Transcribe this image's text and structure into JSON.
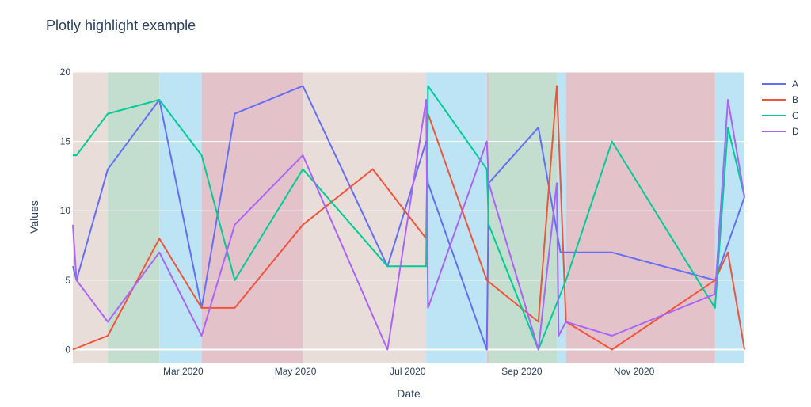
{
  "chart_data": {
    "type": "line",
    "title": "Plotly highlight example",
    "xlabel": "Date",
    "ylabel": "Values",
    "xlim": [
      "2020-01-01",
      "2020-12-31"
    ],
    "ylim": [
      -1,
      20
    ],
    "grid": true,
    "legend_position": "top-right",
    "x_ticks": [
      {
        "date": "2020-03-01",
        "label": "Mar 2020"
      },
      {
        "date": "2020-05-01",
        "label": "May 2020"
      },
      {
        "date": "2020-07-01",
        "label": "Jul 2020"
      },
      {
        "date": "2020-09-01",
        "label": "Sep 2020"
      },
      {
        "date": "2020-11-01",
        "label": "Nov 2020"
      }
    ],
    "y_ticks": [
      0,
      5,
      10,
      15,
      20
    ],
    "highlight_bands": [
      {
        "start": "2020-01-01",
        "end": "2020-01-20",
        "color": "#e8ddd8"
      },
      {
        "start": "2020-01-20",
        "end": "2020-02-17",
        "color": "#c3ddcf"
      },
      {
        "start": "2020-02-17",
        "end": "2020-03-11",
        "color": "#bde4f4"
      },
      {
        "start": "2020-03-11",
        "end": "2020-05-05",
        "color": "#e4c2ca"
      },
      {
        "start": "2020-05-05",
        "end": "2020-07-11",
        "color": "#e8ddd8"
      },
      {
        "start": "2020-07-11",
        "end": "2020-08-13",
        "color": "#bde4f4"
      },
      {
        "start": "2020-08-13",
        "end": "2020-08-14",
        "color": "#e4c2ca"
      },
      {
        "start": "2020-08-14",
        "end": "2020-09-20",
        "color": "#c3ddcf"
      },
      {
        "start": "2020-09-20",
        "end": "2020-09-25",
        "color": "#bde4f4"
      },
      {
        "start": "2020-09-25",
        "end": "2020-12-15",
        "color": "#e4c2ca"
      },
      {
        "start": "2020-12-15",
        "end": "2020-12-31",
        "color": "#bde4f4"
      }
    ],
    "series": [
      {
        "name": "A",
        "color": "#636efa",
        "x": [
          "2020-01-01",
          "2020-01-03",
          "2020-01-20",
          "2020-02-17",
          "2020-03-11",
          "2020-03-29",
          "2020-05-05",
          "2020-06-20",
          "2020-07-11",
          "2020-07-12",
          "2020-08-13",
          "2020-08-14",
          "2020-09-10",
          "2020-09-22",
          "2020-10-20",
          "2020-12-15",
          "2020-12-31"
        ],
        "y": [
          6,
          5,
          13,
          18,
          3,
          17,
          19,
          6,
          15,
          12,
          0,
          12,
          16,
          7,
          7,
          5,
          11
        ]
      },
      {
        "name": "B",
        "color": "#ef553b",
        "x": [
          "2020-01-01",
          "2020-01-20",
          "2020-02-17",
          "2020-03-11",
          "2020-03-29",
          "2020-05-05",
          "2020-06-12",
          "2020-07-11",
          "2020-07-12",
          "2020-08-13",
          "2020-09-10",
          "2020-09-20",
          "2020-09-25",
          "2020-10-20",
          "2020-12-15",
          "2020-12-22",
          "2020-12-31"
        ],
        "y": [
          0,
          1,
          8,
          3,
          3,
          9,
          13,
          8,
          17,
          5,
          2,
          19,
          2,
          0,
          5,
          7,
          0
        ]
      },
      {
        "name": "C",
        "color": "#00cc96",
        "x": [
          "2020-01-01",
          "2020-01-03",
          "2020-01-20",
          "2020-02-17",
          "2020-03-11",
          "2020-03-29",
          "2020-05-05",
          "2020-06-20",
          "2020-07-11",
          "2020-07-12",
          "2020-08-13",
          "2020-08-14",
          "2020-09-10",
          "2020-09-25",
          "2020-10-20",
          "2020-12-15",
          "2020-12-22",
          "2020-12-31"
        ],
        "y": [
          14,
          14,
          17,
          18,
          14,
          5,
          13,
          6,
          6,
          19,
          13,
          9,
          0,
          5,
          15,
          3,
          16,
          11
        ]
      },
      {
        "name": "D",
        "color": "#ab63fa",
        "x": [
          "2020-01-01",
          "2020-01-03",
          "2020-01-20",
          "2020-02-17",
          "2020-03-11",
          "2020-03-29",
          "2020-05-05",
          "2020-06-20",
          "2020-07-11",
          "2020-07-12",
          "2020-08-13",
          "2020-08-14",
          "2020-09-10",
          "2020-09-20",
          "2020-09-21",
          "2020-09-25",
          "2020-10-20",
          "2020-12-15",
          "2020-12-22",
          "2020-12-31"
        ],
        "y": [
          9,
          5,
          2,
          7,
          1,
          9,
          14,
          0,
          18,
          3,
          15,
          12,
          0,
          12,
          1,
          2,
          1,
          4,
          18,
          11
        ]
      }
    ]
  }
}
